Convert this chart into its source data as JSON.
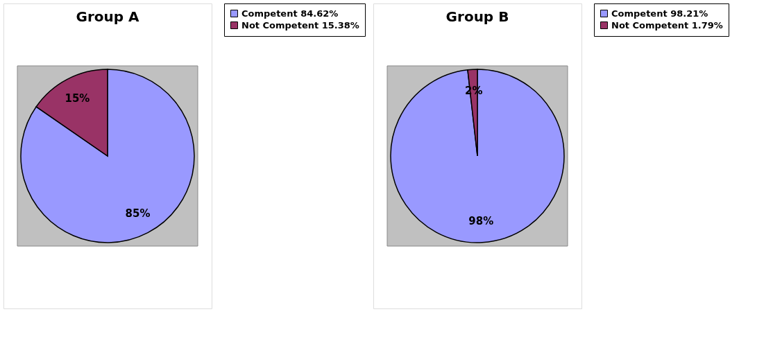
{
  "chart_data": [
    {
      "type": "pie",
      "title": "Group A",
      "categories": [
        "Competent 84.62%",
        "Not Competent 15.38%"
      ],
      "values": [
        84.62,
        15.38
      ],
      "colors": [
        "#9999ff",
        "#993366"
      ],
      "value_labels": [
        "85%",
        "15%"
      ],
      "legend": "right"
    },
    {
      "type": "pie",
      "title": "Group B",
      "categories": [
        "Competent 98.21%",
        "Not Competent 1.79%"
      ],
      "values": [
        98.21,
        1.79
      ],
      "colors": [
        "#9999ff",
        "#993366"
      ],
      "value_labels": [
        "98%",
        "2%"
      ],
      "legend": "right"
    }
  ]
}
